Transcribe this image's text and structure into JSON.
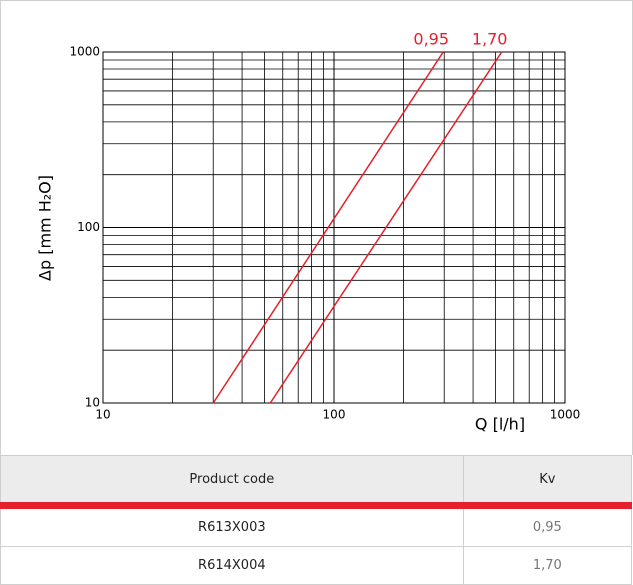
{
  "chart_data": {
    "type": "line",
    "xlabel": "Q [l/h]",
    "ylabel": "Δp [mm H₂O]",
    "xscale": "log",
    "yscale": "log",
    "grid": true,
    "xlim": [
      10,
      1000
    ],
    "ylim": [
      10,
      1000
    ],
    "xticks": [
      10,
      100,
      1000
    ],
    "yticks": [
      10,
      100,
      1000
    ],
    "series": [
      {
        "name": "0,95",
        "color": "#e3202b",
        "x": [
          30,
          297
        ],
        "values": [
          10,
          1000
        ]
      },
      {
        "name": "1,70",
        "color": "#e3202b",
        "x": [
          53,
          532
        ],
        "values": [
          10,
          1000
        ]
      }
    ]
  },
  "table": {
    "header": [
      "Product code",
      "Kv"
    ],
    "rows": [
      [
        "R613X003",
        "0,95"
      ],
      [
        "R614X004",
        "1,70"
      ]
    ]
  }
}
